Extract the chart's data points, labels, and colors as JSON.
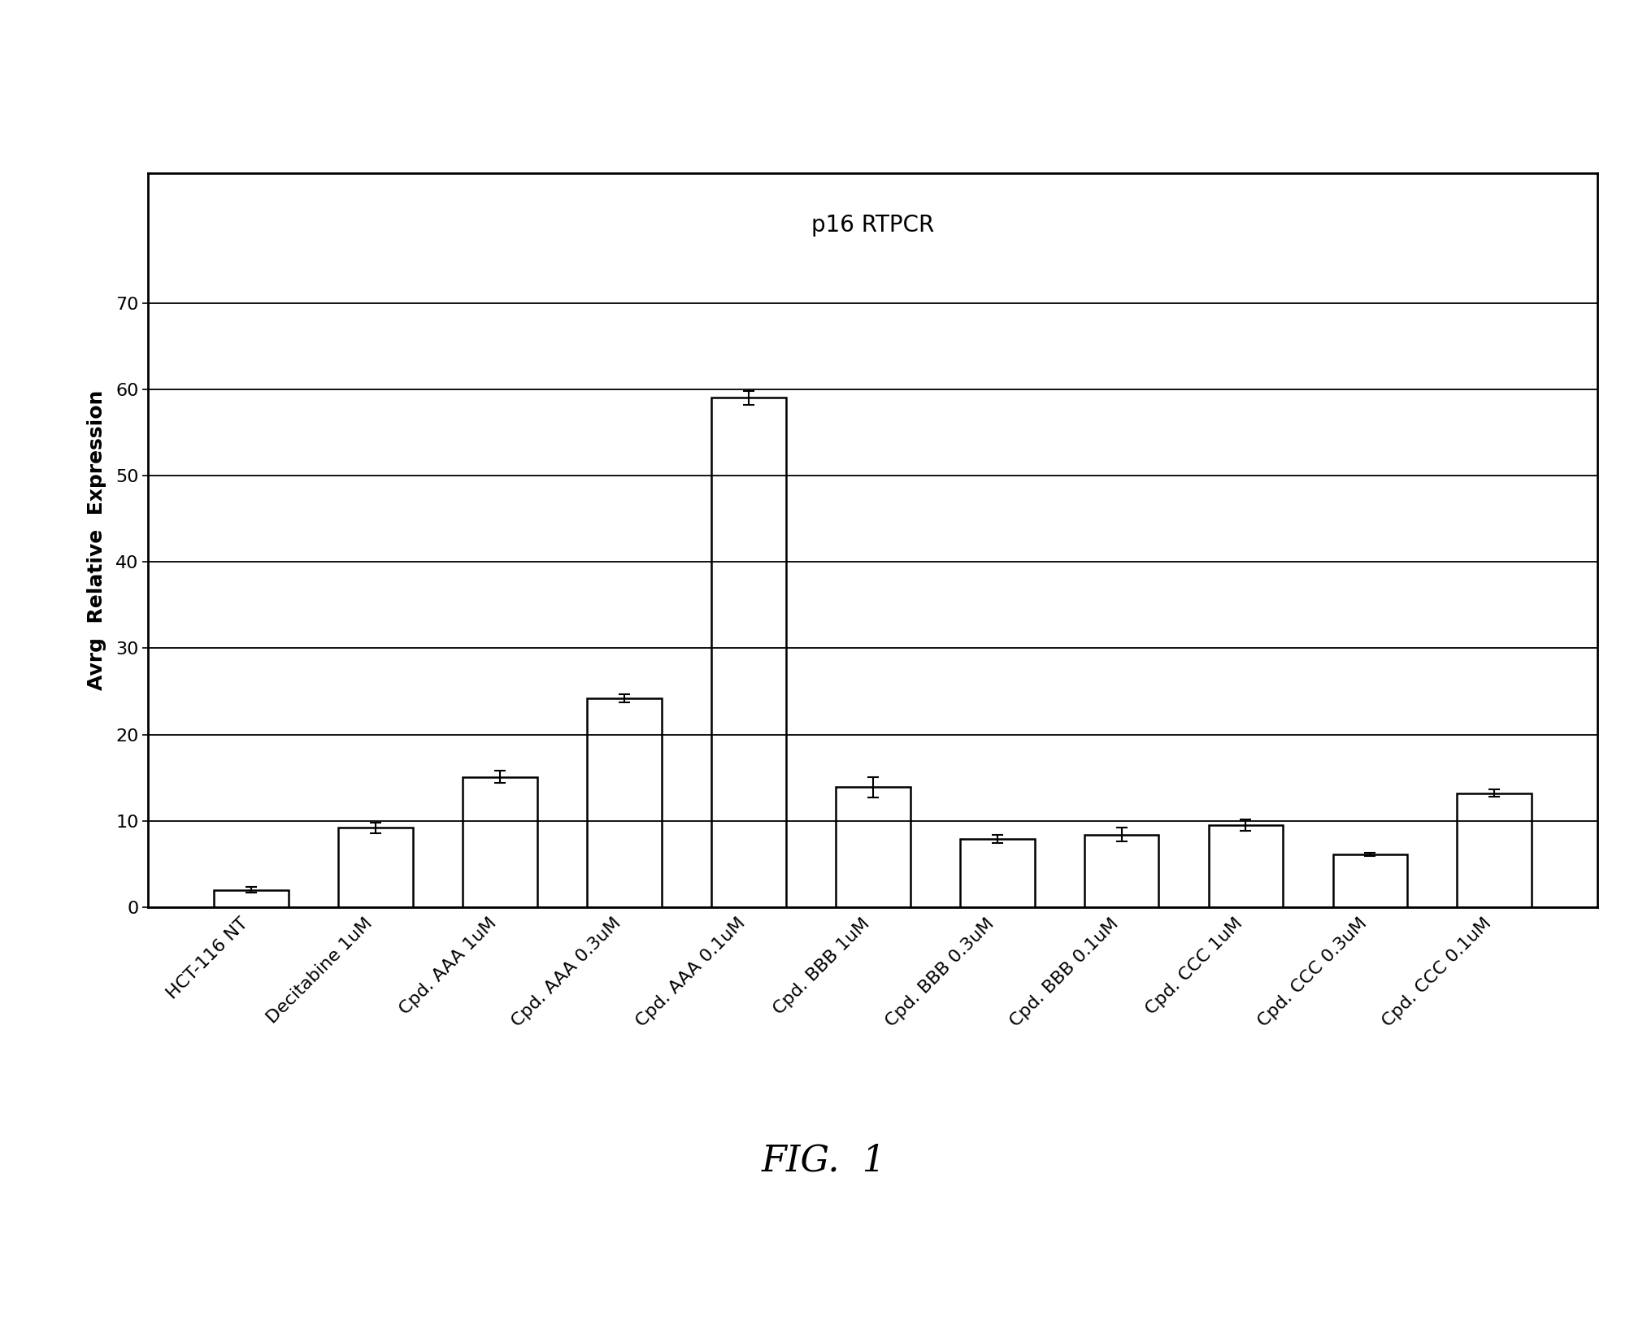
{
  "title": "p16 RTPCR",
  "ylabel": "Avrg  Relative  Expression",
  "ylim": [
    0,
    70
  ],
  "yticks": [
    0,
    10,
    20,
    30,
    40,
    50,
    60,
    70
  ],
  "categories": [
    "HCT-116 NT",
    "Decitabine 1uM",
    "Cpd. AAA 1uM",
    "Cpd. AAA 0.3uM",
    "Cpd. AAA 0.1uM",
    "Cpd. BBB 1uM",
    "Cpd. BBB 0.3uM",
    "Cpd. BBB 0.1uM",
    "Cpd. CCC 1uM",
    "Cpd. CCC 0.3uM",
    "Cpd. CCC 0.1uM"
  ],
  "values": [
    2.0,
    9.2,
    15.1,
    24.2,
    59.0,
    13.9,
    7.9,
    8.4,
    9.5,
    6.1,
    13.2
  ],
  "errors": [
    0.3,
    0.6,
    0.7,
    0.5,
    0.8,
    1.2,
    0.5,
    0.8,
    0.7,
    0.2,
    0.4
  ],
  "bar_color": "#ffffff",
  "bar_edgecolor": "#000000",
  "background_color": "#ffffff",
  "title_fontsize": 20,
  "ylabel_fontsize": 18,
  "tick_fontsize": 16,
  "fig_caption": "FIG.  1",
  "fig_caption_fontsize": 32,
  "grid_color": "#000000",
  "bar_width": 0.6
}
